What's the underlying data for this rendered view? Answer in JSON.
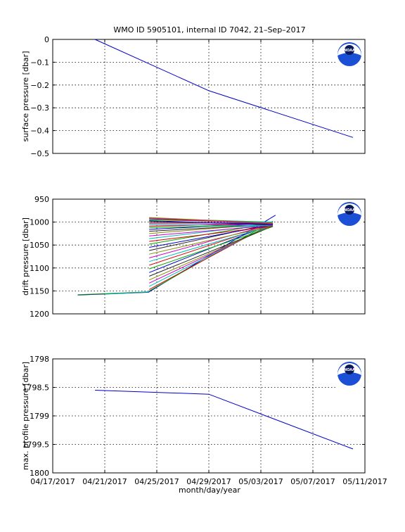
{
  "figure": {
    "title": "WMO ID 5905101, internal ID 7042, 21–Sep–2017",
    "xlabel": "month/day/year",
    "x_tick_labels": [
      "04/17/2017",
      "04/21/2017",
      "04/25/2017",
      "04/29/2017",
      "05/03/2017",
      "05/07/2017",
      "05/11/2017"
    ],
    "logo_text": "NOAA",
    "colors": {
      "line": "#0000cc",
      "logo_blue": "#1a4fd6",
      "logo_navy": "#0b1a5c",
      "grid": "#000000"
    }
  },
  "chart_data": [
    {
      "type": "line",
      "ylabel": "surface pressure [dbar]",
      "xlim": [
        "2017-04-17",
        "2017-05-11"
      ],
      "ylim": [
        -0.5,
        0
      ],
      "y_reversed": false,
      "y_ticks": [
        0,
        -0.1,
        -0.2,
        -0.3,
        -0.4,
        -0.5
      ],
      "y_tick_labels": [
        "0",
        "−0.1",
        "−0.2",
        "−0.3",
        "−0.4",
        "−0.5"
      ],
      "grid": true,
      "series": [
        {
          "color": "#0000cc",
          "x": [
            "2017-04-20T06:00",
            "2017-04-29T00:00",
            "2017-05-10T02:00"
          ],
          "y": [
            0,
            -0.225,
            -0.43
          ]
        }
      ]
    },
    {
      "type": "line",
      "ylabel": "drift pressure [dbar]",
      "xlim": [
        "2017-04-17",
        "2017-05-11"
      ],
      "ylim": [
        950,
        1200
      ],
      "y_reversed": true,
      "y_ticks": [
        950,
        1000,
        1050,
        1100,
        1150,
        1200
      ],
      "y_tick_labels": [
        "950",
        "1000",
        "1050",
        "1100",
        "1150",
        "1200"
      ],
      "grid": true,
      "series": [
        {
          "color": "#0000cc",
          "x": [
            "2017-04-18T22:00",
            "2017-04-24T10:00"
          ],
          "y": [
            1159,
            1153
          ]
        },
        {
          "color": "#008800",
          "x": [
            "2017-04-18T22:00",
            "2017-04-24T10:00"
          ],
          "y": [
            1158.5,
            1152
          ]
        },
        {
          "color": "#00aaaa",
          "x": [
            "2017-04-21T00:00",
            "2017-04-24T10:00"
          ],
          "y": [
            1157,
            1152.5
          ]
        },
        {
          "color": "#0000cc",
          "x": [
            "2017-04-24T10:00",
            "2017-05-04T03:00"
          ],
          "y": [
            1152,
            985
          ]
        },
        {
          "color": "#00aa00",
          "x": [
            "2017-04-24T10:00",
            "2017-05-03T22:00"
          ],
          "y": [
            1150,
            998
          ]
        },
        {
          "color": "#dd0000",
          "x": [
            "2017-04-24T10:00",
            "2017-05-03T22:00"
          ],
          "y": [
            1147,
            1002
          ]
        },
        {
          "color": "#00bbbb",
          "x": [
            "2017-04-24T10:00",
            "2017-05-03T22:00"
          ],
          "y": [
            1140,
            1004
          ]
        },
        {
          "color": "#cc00cc",
          "x": [
            "2017-04-24T10:00",
            "2017-05-03T22:00"
          ],
          "y": [
            1133,
            1006
          ]
        },
        {
          "color": "#888800",
          "x": [
            "2017-04-24T10:00",
            "2017-05-03T22:00"
          ],
          "y": [
            1126,
            1008
          ]
        },
        {
          "color": "#222222",
          "x": [
            "2017-04-24T10:00",
            "2017-05-03T22:00"
          ],
          "y": [
            1118,
            1009
          ]
        },
        {
          "color": "#0000cc",
          "x": [
            "2017-04-24T10:00",
            "2017-05-03T22:00"
          ],
          "y": [
            1110,
            1003
          ]
        },
        {
          "color": "#00aa00",
          "x": [
            "2017-04-24T10:00",
            "2017-05-03T22:00"
          ],
          "y": [
            1102,
            1010
          ]
        },
        {
          "color": "#dd0000",
          "x": [
            "2017-04-24T10:00",
            "2017-05-03T22:00"
          ],
          "y": [
            1094,
            1005
          ]
        },
        {
          "color": "#00bbbb",
          "x": [
            "2017-04-24T10:00",
            "2017-05-03T22:00"
          ],
          "y": [
            1086,
            1007
          ]
        },
        {
          "color": "#cc00cc",
          "x": [
            "2017-04-24T10:00",
            "2017-05-03T22:00"
          ],
          "y": [
            1078,
            1004
          ]
        },
        {
          "color": "#888800",
          "x": [
            "2017-04-24T10:00",
            "2017-05-03T22:00"
          ],
          "y": [
            1070,
            1008
          ]
        },
        {
          "color": "#222222",
          "x": [
            "2017-04-24T10:00",
            "2017-05-03T22:00"
          ],
          "y": [
            1062,
            1003
          ]
        },
        {
          "color": "#0000cc",
          "x": [
            "2017-04-24T10:00",
            "2017-05-03T22:00"
          ],
          "y": [
            1055,
            1006
          ]
        },
        {
          "color": "#00aa00",
          "x": [
            "2017-04-24T10:00",
            "2017-05-03T22:00"
          ],
          "y": [
            1048,
            1002
          ]
        },
        {
          "color": "#dd0000",
          "x": [
            "2017-04-24T10:00",
            "2017-05-03T22:00"
          ],
          "y": [
            1042,
            1009
          ]
        },
        {
          "color": "#00bbbb",
          "x": [
            "2017-04-24T10:00",
            "2017-05-03T22:00"
          ],
          "y": [
            1036,
            1004
          ]
        },
        {
          "color": "#cc00cc",
          "x": [
            "2017-04-24T10:00",
            "2017-05-03T22:00"
          ],
          "y": [
            1030,
            1007
          ]
        },
        {
          "color": "#888800",
          "x": [
            "2017-04-24T10:00",
            "2017-05-03T22:00"
          ],
          "y": [
            1025,
            1003
          ]
        },
        {
          "color": "#222222",
          "x": [
            "2017-04-24T10:00",
            "2017-05-03T22:00"
          ],
          "y": [
            1020,
            1005
          ]
        },
        {
          "color": "#0000cc",
          "x": [
            "2017-04-24T10:00",
            "2017-05-03T22:00"
          ],
          "y": [
            1016,
            1002
          ]
        },
        {
          "color": "#00aa00",
          "x": [
            "2017-04-24T10:00",
            "2017-05-03T22:00"
          ],
          "y": [
            1012,
            1006
          ]
        },
        {
          "color": "#dd0000",
          "x": [
            "2017-04-24T10:00",
            "2017-05-03T22:00"
          ],
          "y": [
            1009,
            1003
          ]
        },
        {
          "color": "#00bbbb",
          "x": [
            "2017-04-24T10:00",
            "2017-05-03T22:00"
          ],
          "y": [
            1006,
            1008
          ]
        },
        {
          "color": "#cc00cc",
          "x": [
            "2017-04-24T10:00",
            "2017-05-03T22:00"
          ],
          "y": [
            1003,
            1005
          ]
        },
        {
          "color": "#888800",
          "x": [
            "2017-04-24T10:00",
            "2017-05-03T22:00"
          ],
          "y": [
            1001,
            1002
          ]
        },
        {
          "color": "#222222",
          "x": [
            "2017-04-24T10:00",
            "2017-05-03T22:00"
          ],
          "y": [
            999,
            1004
          ]
        },
        {
          "color": "#0000cc",
          "x": [
            "2017-04-24T10:00",
            "2017-05-03T22:00"
          ],
          "y": [
            997,
            1006
          ]
        },
        {
          "color": "#00aa00",
          "x": [
            "2017-04-24T10:00",
            "2017-05-03T22:00"
          ],
          "y": [
            995,
            1001
          ]
        },
        {
          "color": "#dd0000",
          "x": [
            "2017-04-24T10:00",
            "2017-05-03T22:00"
          ],
          "y": [
            993,
            1003
          ]
        },
        {
          "color": "#00bbbb",
          "x": [
            "2017-04-24T10:00",
            "2017-05-03T22:00"
          ],
          "y": [
            992,
            1000
          ]
        },
        {
          "color": "#cc00cc",
          "x": [
            "2017-04-24T10:00",
            "2017-05-03T22:00"
          ],
          "y": [
            991,
            1004
          ]
        },
        {
          "color": "#888800",
          "x": [
            "2017-04-24T10:00",
            "2017-05-03T22:00"
          ],
          "y": [
            990,
            1002
          ]
        }
      ]
    },
    {
      "type": "line",
      "ylabel": "max. profile pressure [dbar]",
      "xlim": [
        "2017-04-17",
        "2017-05-11"
      ],
      "ylim": [
        1798,
        1800
      ],
      "y_reversed": true,
      "y_ticks": [
        1798,
        1798.5,
        1799,
        1799.5,
        1800
      ],
      "y_tick_labels": [
        "1798",
        "1798.5",
        "1799",
        "1799.5",
        "1800"
      ],
      "grid": true,
      "series": [
        {
          "color": "#0000cc",
          "x": [
            "2017-04-20T06:00",
            "2017-04-29T00:00",
            "2017-05-10T02:00"
          ],
          "y": [
            1798.55,
            1798.62,
            1799.58
          ]
        }
      ]
    }
  ]
}
